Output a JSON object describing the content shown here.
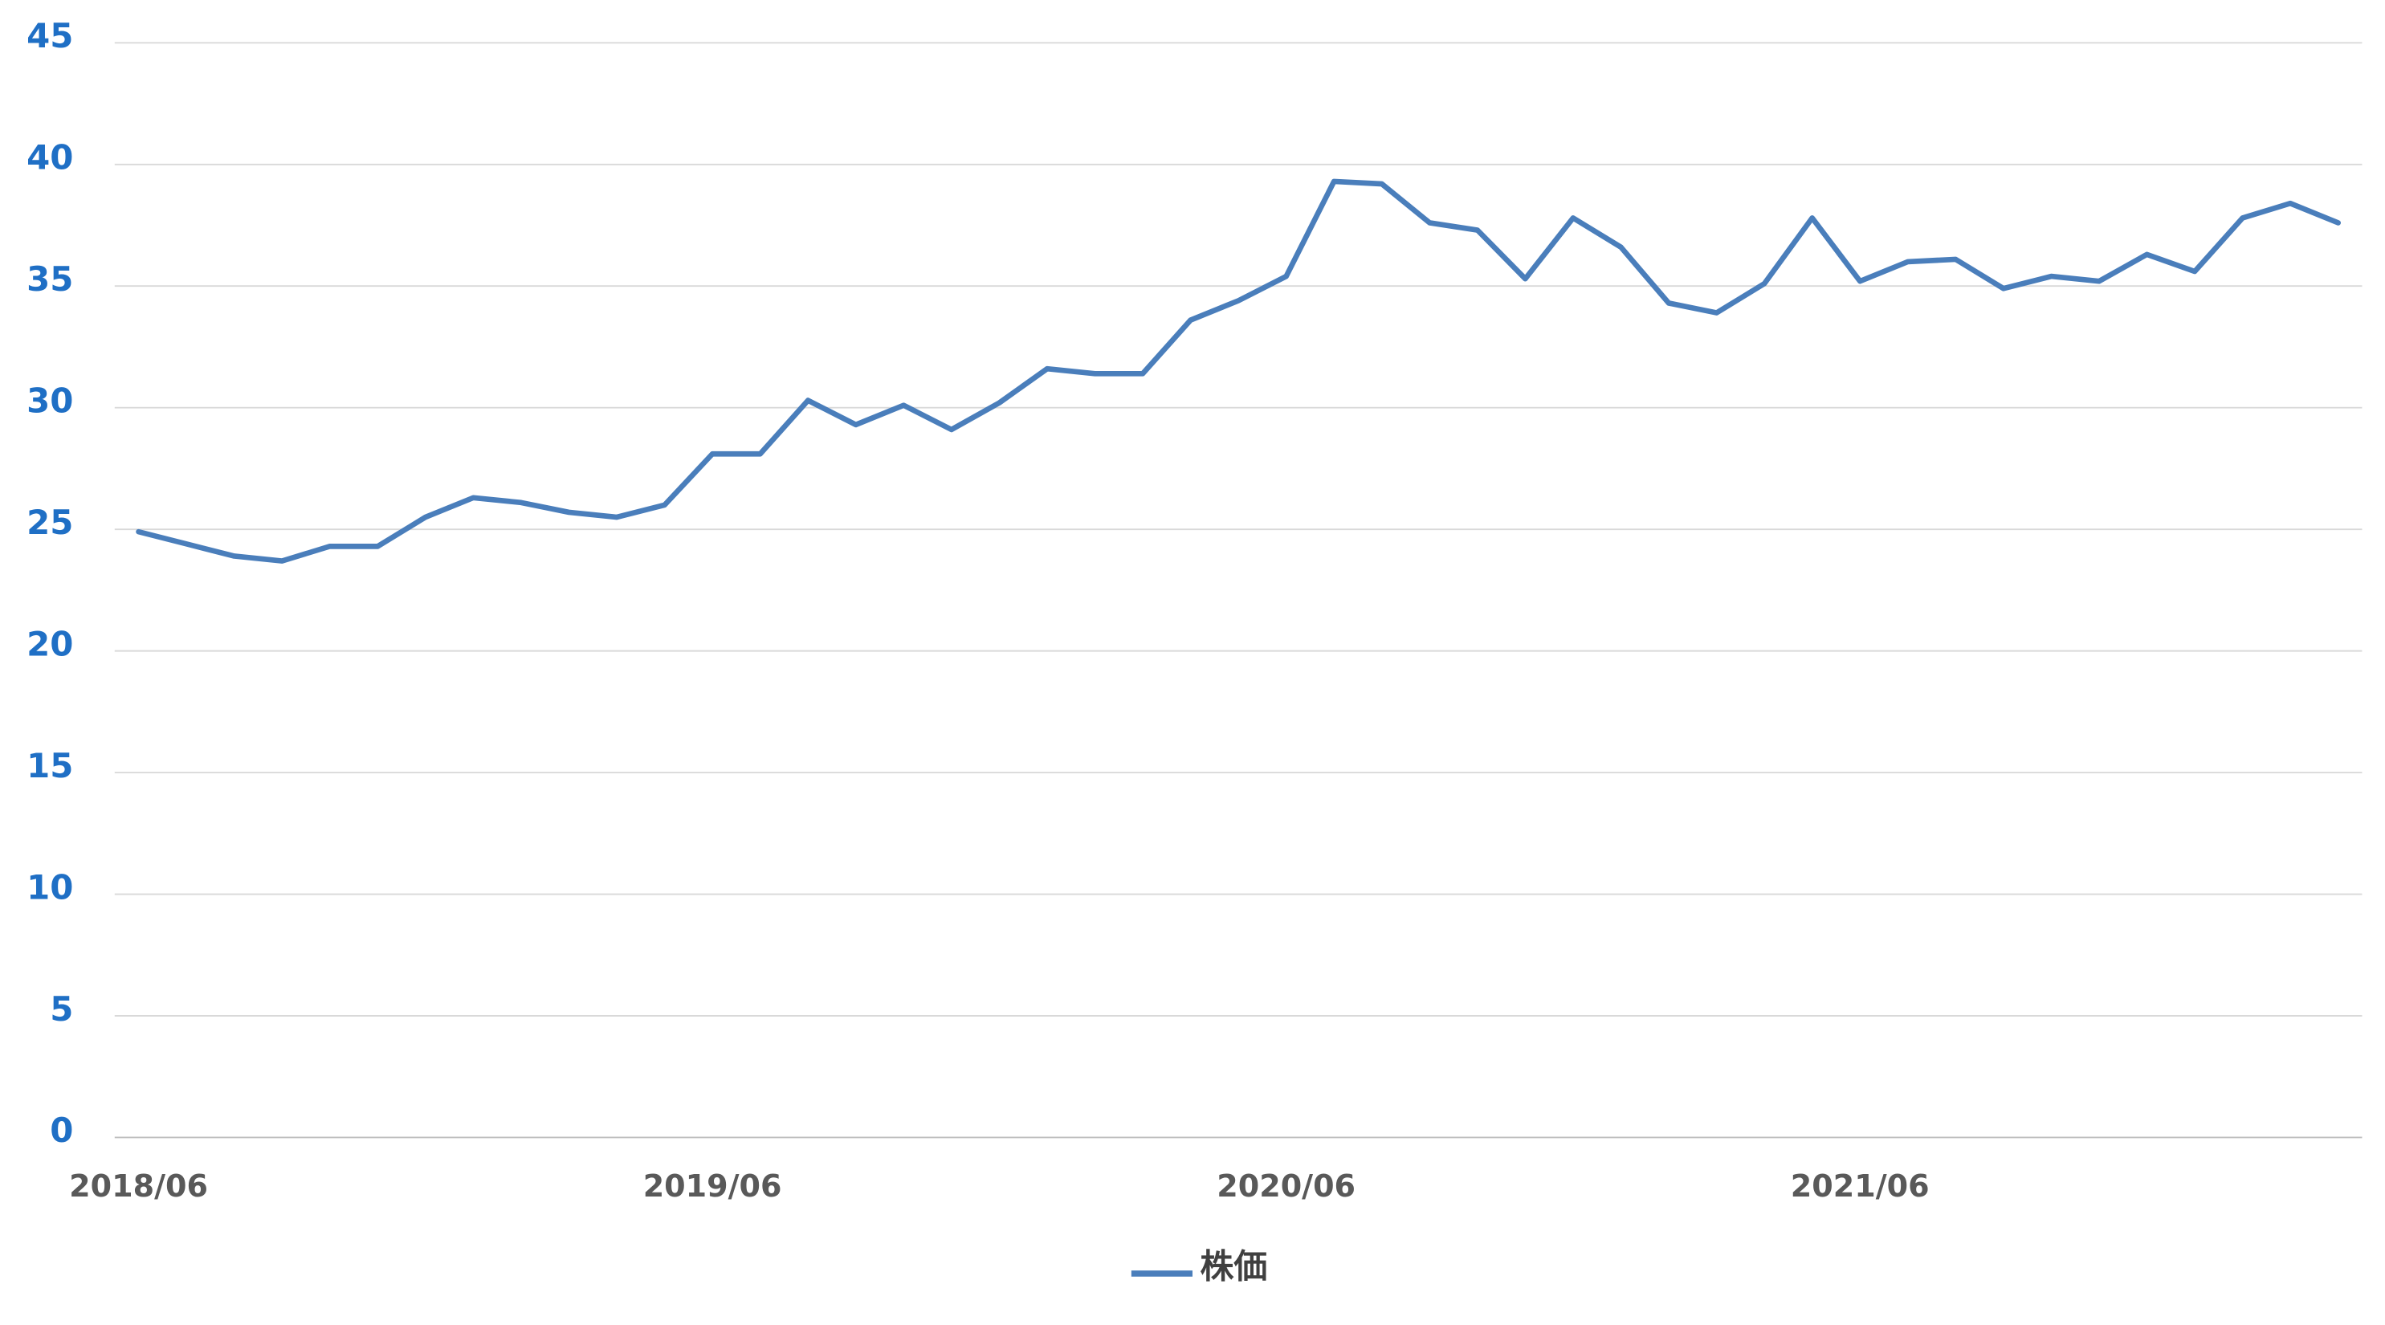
{
  "chart_data": {
    "type": "line",
    "categories": [
      "2018/06",
      null,
      null,
      null,
      null,
      null,
      null,
      null,
      null,
      null,
      null,
      null,
      "2019/06",
      null,
      null,
      null,
      null,
      null,
      null,
      null,
      null,
      null,
      null,
      null,
      "2020/06",
      null,
      null,
      null,
      null,
      null,
      null,
      null,
      null,
      null,
      null,
      null,
      "2021/06",
      null,
      null,
      null,
      null,
      null,
      null,
      null,
      null,
      null,
      null
    ],
    "series": [
      {
        "name": "株価",
        "color": "#4a7ebb",
        "values": [
          24.9,
          24.4,
          23.9,
          23.7,
          24.3,
          24.3,
          25.5,
          26.3,
          26.1,
          25.7,
          25.5,
          26.0,
          28.1,
          28.1,
          30.3,
          29.3,
          30.1,
          29.1,
          30.2,
          31.6,
          31.4,
          31.4,
          33.6,
          34.4,
          35.4,
          39.3,
          39.2,
          37.6,
          37.3,
          35.3,
          37.8,
          36.6,
          34.3,
          33.9,
          35.1,
          37.8,
          35.2,
          36.0,
          36.1,
          34.9,
          35.4,
          35.2,
          36.3,
          35.6,
          37.8,
          38.4,
          37.6
        ]
      }
    ],
    "ylim": [
      0,
      45
    ],
    "yticks": [
      0,
      5,
      10,
      15,
      20,
      25,
      30,
      35,
      40,
      45
    ],
    "grid": true,
    "legend": "bottom"
  }
}
